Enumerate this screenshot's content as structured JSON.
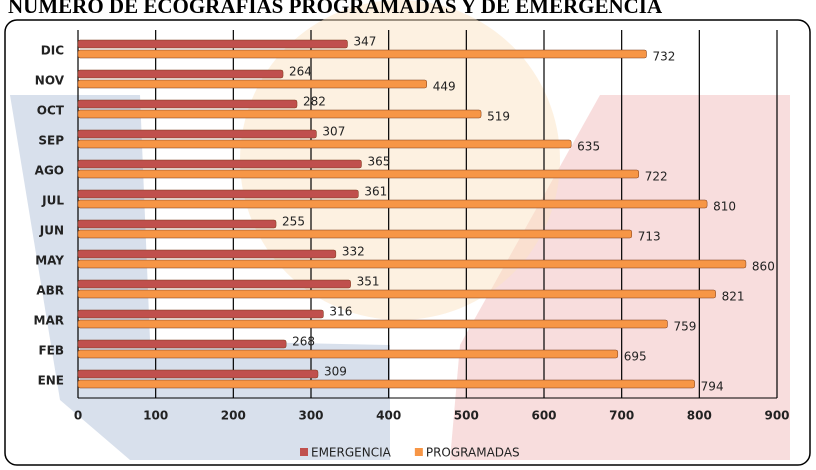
{
  "chart_data": {
    "type": "hbar",
    "title": "NÚMERO DE ECOGRAFÍAS PROGRAMADAS Y DE EMERGENCIA",
    "categories": [
      "ENE",
      "FEB",
      "MAR",
      "ABR",
      "MAY",
      "JUN",
      "JUL",
      "AGO",
      "SEP",
      "OCT",
      "NOV",
      "DIC"
    ],
    "series": [
      {
        "name": "EMERGENCIA",
        "color": "#c0504d",
        "values": [
          309,
          268,
          316,
          351,
          332,
          255,
          361,
          365,
          307,
          282,
          264,
          347
        ]
      },
      {
        "name": "PROGRAMADAS",
        "color": "#f79646",
        "values": [
          794,
          695,
          759,
          821,
          860,
          713,
          810,
          722,
          635,
          519,
          449,
          732
        ]
      }
    ],
    "xlim": [
      0,
      900
    ],
    "xticks": [
      0,
      100,
      200,
      300,
      400,
      500,
      600,
      700,
      800,
      900
    ],
    "grid": true,
    "legend": "bottom"
  }
}
